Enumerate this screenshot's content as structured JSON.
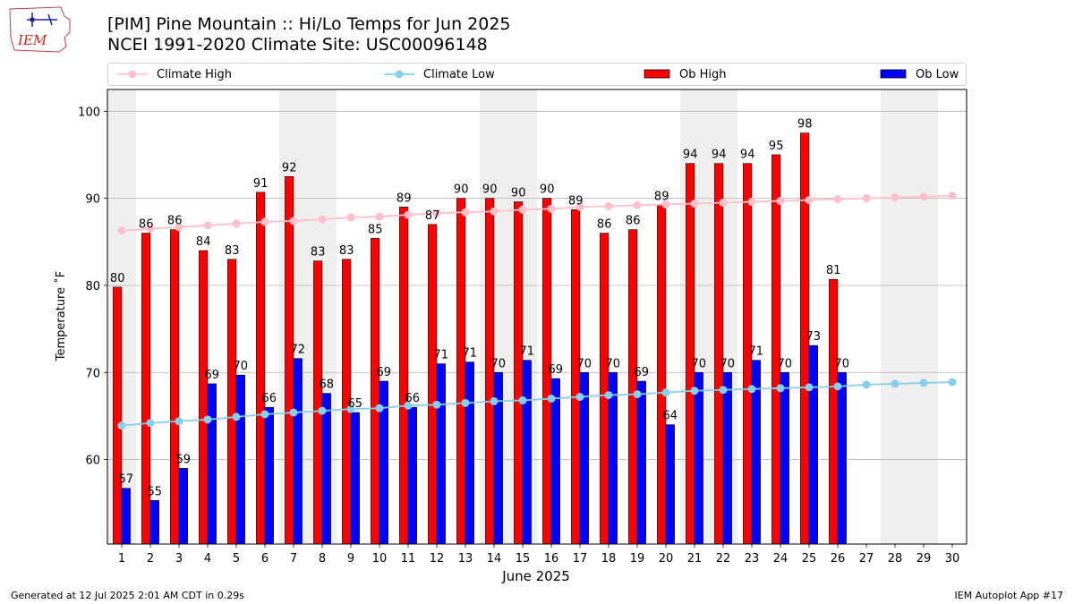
{
  "logo": {
    "text": "IEM",
    "icon": "iowa-state-outline-icon"
  },
  "footer": {
    "left": "Generated at 12 Jul 2025 2:01 AM CDT in 0.29s",
    "right": "IEM Autoplot App #17"
  },
  "colors": {
    "climate_high": "#ffc0cb",
    "climate_low": "#87ceeb",
    "ob_high": "#ff0000",
    "ob_low": "#0000ff",
    "weekend_band": "#efefef",
    "grid": "#b0b0b0"
  },
  "chart_data": {
    "type": "bar",
    "title": "[PIM] Pine Mountain :: Hi/Lo Temps for Jun 2025",
    "subtitle": "NCEI 1991-2020 Climate Site: USC00096148",
    "xlabel": "June 2025",
    "ylabel": "Temperature ˚F",
    "ylim": [
      50.3,
      102.5
    ],
    "xlim": [
      0.5,
      30.5
    ],
    "yticks": [
      60,
      70,
      80,
      90,
      100
    ],
    "x": [
      1,
      2,
      3,
      4,
      5,
      6,
      7,
      8,
      9,
      10,
      11,
      12,
      13,
      14,
      15,
      16,
      17,
      18,
      19,
      20,
      21,
      22,
      23,
      24,
      25,
      26,
      27,
      28,
      29,
      30
    ],
    "grid": "horizontal",
    "legend_position": "top",
    "shaded_days": [
      1,
      7,
      8,
      14,
      15,
      21,
      22,
      28,
      29
    ],
    "series": [
      {
        "name": "Climate High",
        "kind": "line",
        "values": [
          86.3,
          86.5,
          86.7,
          86.9,
          87.1,
          87.3,
          87.4,
          87.6,
          87.8,
          87.9,
          88.1,
          88.3,
          88.4,
          88.5,
          88.7,
          88.8,
          89.0,
          89.1,
          89.2,
          89.3,
          89.4,
          89.5,
          89.6,
          89.7,
          89.8,
          89.9,
          90.0,
          90.1,
          90.2,
          90.3
        ]
      },
      {
        "name": "Climate Low",
        "kind": "line",
        "values": [
          63.9,
          64.2,
          64.4,
          64.6,
          64.9,
          65.2,
          65.4,
          65.6,
          65.8,
          65.9,
          66.2,
          66.3,
          66.5,
          66.7,
          66.8,
          67.0,
          67.2,
          67.4,
          67.5,
          67.7,
          67.9,
          68.0,
          68.1,
          68.2,
          68.3,
          68.4,
          68.6,
          68.7,
          68.8,
          68.9
        ]
      },
      {
        "name": "Ob High",
        "kind": "bar",
        "values": [
          79.8,
          86.0,
          86.4,
          84.0,
          83.0,
          90.7,
          92.5,
          82.8,
          83.0,
          85.4,
          89.0,
          87.0,
          90.0,
          90.0,
          89.6,
          90.0,
          88.7,
          86.0,
          86.4,
          89.2,
          94.0,
          94.0,
          94.0,
          95.0,
          97.5,
          80.7,
          null,
          null,
          null,
          null
        ],
        "labels": [
          "80",
          "86",
          "86",
          "84",
          "83",
          "91",
          "92",
          "83",
          "83",
          "85",
          "89",
          "87",
          "90",
          "90",
          "90",
          "90",
          "89",
          "86",
          "86",
          "89",
          "94",
          "94",
          "94",
          "95",
          "98",
          "81",
          "",
          "",
          "",
          ""
        ]
      },
      {
        "name": "Ob Low",
        "kind": "bar",
        "values": [
          56.7,
          55.3,
          59.0,
          68.7,
          69.7,
          66.0,
          71.6,
          67.6,
          65.4,
          69.0,
          66.0,
          71.0,
          71.2,
          70.0,
          71.4,
          69.3,
          70.0,
          70.0,
          69.0,
          64.0,
          70.0,
          70.0,
          71.4,
          70.0,
          73.1,
          70.0,
          null,
          null,
          null,
          null
        ],
        "labels": [
          "57",
          "55",
          "59",
          "69",
          "70",
          "66",
          "72",
          "68",
          "65",
          "69",
          "66",
          "71",
          "71",
          "70",
          "71",
          "69",
          "70",
          "70",
          "69",
          "64",
          "70",
          "70",
          "71",
          "70",
          "73",
          "70",
          "",
          "",
          "",
          ""
        ]
      }
    ]
  }
}
